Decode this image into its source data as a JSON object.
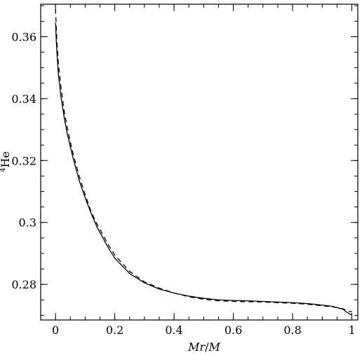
{
  "chart_data": {
    "type": "line",
    "title": "",
    "xlabel": {
      "main": "Mr/M",
      "parts": [
        "Mr",
        "/",
        "M"
      ]
    },
    "ylabel": {
      "superscript": "4",
      "main": "He"
    },
    "xlim": [
      -0.05,
      1.02
    ],
    "ylim": [
      0.2685,
      0.3705
    ],
    "grid": false,
    "legend": "none",
    "x_ticks": [
      0,
      0.2,
      0.4,
      0.6,
      0.8,
      1
    ],
    "x_tick_labels": [
      "0",
      "0.2",
      "0.4",
      "0.6",
      "0.8",
      "1"
    ],
    "x_minor_step": 0.05,
    "y_ticks": [
      0.28,
      0.3,
      0.32,
      0.34,
      0.36
    ],
    "y_tick_labels": [
      "0.28",
      "0.3",
      "0.32",
      "0.34",
      "0.36"
    ],
    "y_minor_step": 0.005,
    "series": [
      {
        "style": "solid",
        "color": "#000000",
        "x": [
          0.0,
          0.003,
          0.006,
          0.01,
          0.02,
          0.03,
          0.04,
          0.05,
          0.06,
          0.08,
          0.1,
          0.12,
          0.14,
          0.16,
          0.18,
          0.2,
          0.25,
          0.3,
          0.35,
          0.4,
          0.45,
          0.5,
          0.55,
          0.6,
          0.65,
          0.7,
          0.75,
          0.8,
          0.85,
          0.9,
          0.93,
          0.95,
          0.97,
          0.98,
          0.99,
          0.995,
          1.0
        ],
        "y": [
          0.3645,
          0.358,
          0.353,
          0.3475,
          0.3395,
          0.3335,
          0.3285,
          0.3245,
          0.3205,
          0.3135,
          0.308,
          0.303,
          0.2985,
          0.295,
          0.2915,
          0.2885,
          0.2835,
          0.2805,
          0.2785,
          0.2772,
          0.2762,
          0.2755,
          0.275,
          0.2748,
          0.2747,
          0.2745,
          0.2743,
          0.2741,
          0.2738,
          0.2733,
          0.273,
          0.2725,
          0.272,
          0.2712,
          0.2706,
          0.2703,
          0.2702
        ]
      },
      {
        "style": "dashed",
        "color": "#000000",
        "x": [
          0.0,
          0.003,
          0.006,
          0.01,
          0.02,
          0.03,
          0.04,
          0.05,
          0.06,
          0.08,
          0.1,
          0.12,
          0.14,
          0.16,
          0.18,
          0.2,
          0.25,
          0.3,
          0.35,
          0.4,
          0.45,
          0.5,
          0.55,
          0.6,
          0.65,
          0.7,
          0.75,
          0.8,
          0.85,
          0.9,
          0.93,
          0.95,
          0.97,
          0.98,
          0.99,
          0.995,
          1.0
        ],
        "y": [
          0.369,
          0.362,
          0.3565,
          0.351,
          0.3425,
          0.3355,
          0.3305,
          0.326,
          0.322,
          0.315,
          0.309,
          0.3035,
          0.2995,
          0.296,
          0.2925,
          0.2895,
          0.2842,
          0.2808,
          0.2788,
          0.2772,
          0.276,
          0.2752,
          0.2747,
          0.2745,
          0.2744,
          0.2743,
          0.2741,
          0.2739,
          0.2736,
          0.2731,
          0.2728,
          0.2725,
          0.2721,
          0.2717,
          0.2714,
          0.2712,
          0.2713
        ]
      }
    ]
  }
}
